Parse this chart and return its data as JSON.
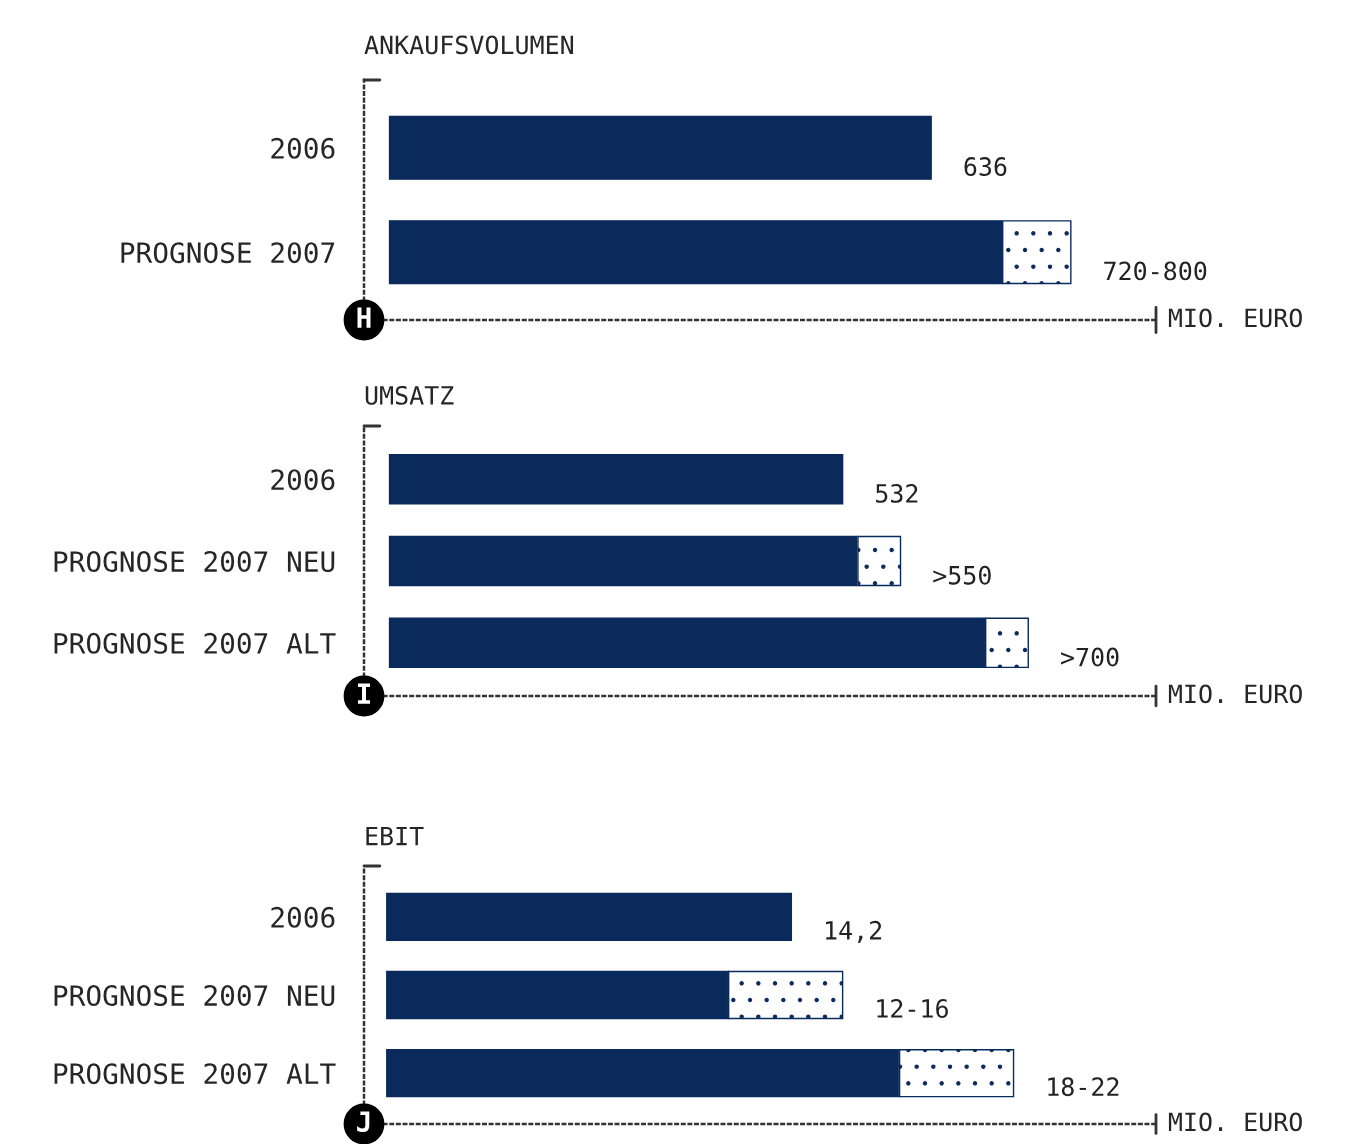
{
  "chart_data": [
    {
      "type": "bar",
      "orientation": "horizontal",
      "stacked": true,
      "title": "ANKAUFSVOLUMEN",
      "xlabel": "MIO. EURO",
      "categories": [
        "2006",
        "PROGNOSE 2007"
      ],
      "xlim": [
        -30,
        900
      ],
      "series": [
        {
          "color": "#0b2a5c",
          "values": [
            636,
            720
          ],
          "value_labels": [
            "636",
            null
          ]
        },
        {
          "color": "#ffffff",
          "values": [
            null,
            80
          ],
          "value_labels": [
            null,
            "720-800"
          ]
        }
      ],
      "annotations": [
        "H"
      ]
    },
    {
      "type": "bar",
      "orientation": "horizontal",
      "stacked": true,
      "title": "UMSATZ",
      "xlabel": "MIO. EURO",
      "categories": [
        "2006",
        "PROGNOSE 2007 NEU",
        "PROGNOSE 2007 ALT"
      ],
      "xlim": [
        -30,
        900
      ],
      "series": [
        {
          "color": "#0b2a5c",
          "values": [
            532,
            550,
            700
          ],
          "value_labels": [
            "532",
            null,
            null
          ]
        },
        {
          "color": "#ffffff",
          "values": [
            null,
            50,
            50
          ],
          "value_labels": [
            null,
            ">550",
            ">700"
          ]
        }
      ],
      "annotations": [
        "I"
      ]
    },
    {
      "type": "bar",
      "orientation": "horizontal",
      "stacked": true,
      "title": "EBIT",
      "xlabel": "MIO. EURO",
      "categories": [
        "2006",
        "PROGNOSE 2007 NEU",
        "PROGNOSE 2007 ALT"
      ],
      "xlim": [
        -0.8,
        27
      ],
      "series": [
        {
          "color": "#0b2a5c",
          "values": [
            14.2,
            12,
            18
          ],
          "value_labels": [
            "14,2",
            null,
            null
          ]
        },
        {
          "color": "#ffffff",
          "values": [
            null,
            4,
            4
          ],
          "value_labels": [
            null,
            "12-16",
            "18-22"
          ]
        }
      ],
      "annotations": [
        "J"
      ]
    }
  ]
}
